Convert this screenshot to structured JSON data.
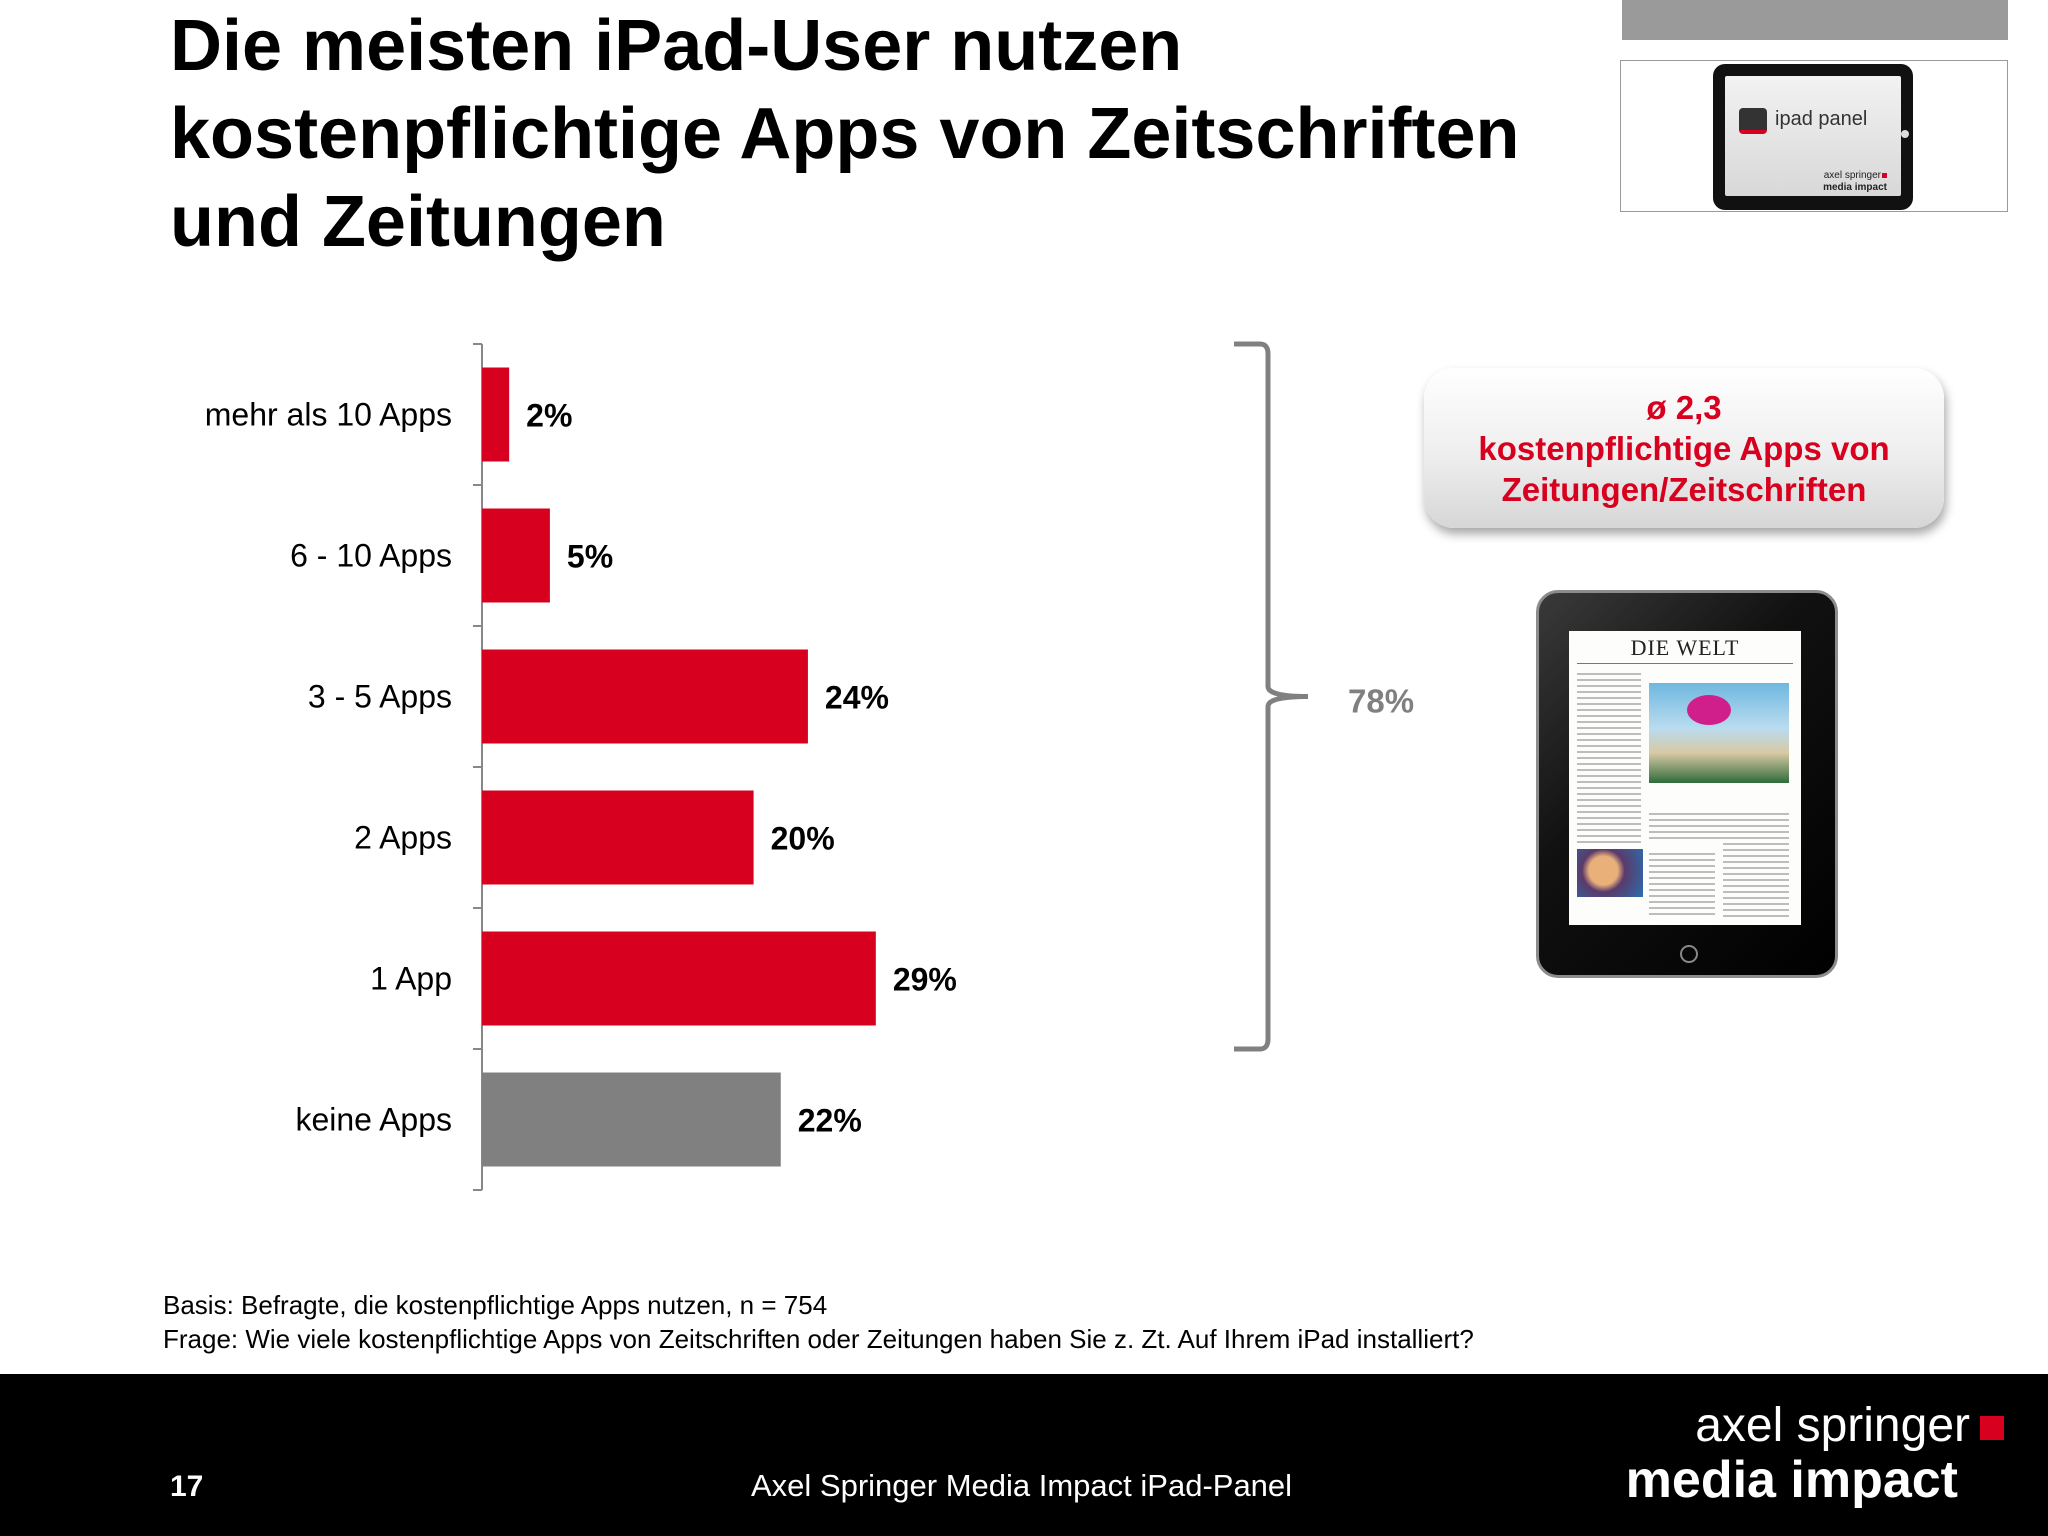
{
  "title": [
    "Die meisten iPad-User nutzen",
    "kostenpflichtige Apps von Zeitschriften",
    "und Zeitungen"
  ],
  "logo": {
    "panel_name": "ipad panel",
    "brand_line1": "axel springer",
    "brand_line2": "media impact"
  },
  "chart_data": {
    "type": "bar",
    "orientation": "horizontal",
    "title": "",
    "xlabel": "",
    "ylabel": "",
    "xlim": [
      0,
      40
    ],
    "grid": false,
    "categories": [
      "mehr als 10 Apps",
      "6 - 10 Apps",
      "3 - 5 Apps",
      "2 Apps",
      "1 App",
      "keine Apps"
    ],
    "values": [
      2,
      5,
      24,
      20,
      29,
      22
    ],
    "value_labels": [
      "2%",
      "5%",
      "24%",
      "20%",
      "29%",
      "22%"
    ],
    "colors": [
      "#d7001f",
      "#d7001f",
      "#d7001f",
      "#d7001f",
      "#d7001f",
      "#808080"
    ],
    "bracket": {
      "from_category": "mehr als 10 Apps",
      "to_category": "1 App",
      "label": "78%",
      "color": "#808080"
    }
  },
  "callout": {
    "lines": [
      "ø 2,3",
      "kostenpflichtige Apps von",
      "Zeitungen/Zeitschriften"
    ],
    "color": "#d7001f"
  },
  "tablet": {
    "newspaper_name": "DIE WELT"
  },
  "notes": [
    "Basis: Befragte, die kostenpflichtige Apps nutzen, n = 754",
    "Frage: Wie viele kostenpflichtige Apps von Zeitschriften oder Zeitungen haben Sie z. Zt. Auf Ihrem iPad installiert?"
  ],
  "footer": {
    "page_number": "17",
    "text": "Axel Springer Media Impact iPad-Panel",
    "brand_line1": "axel springer",
    "brand_line2": "media impact"
  }
}
